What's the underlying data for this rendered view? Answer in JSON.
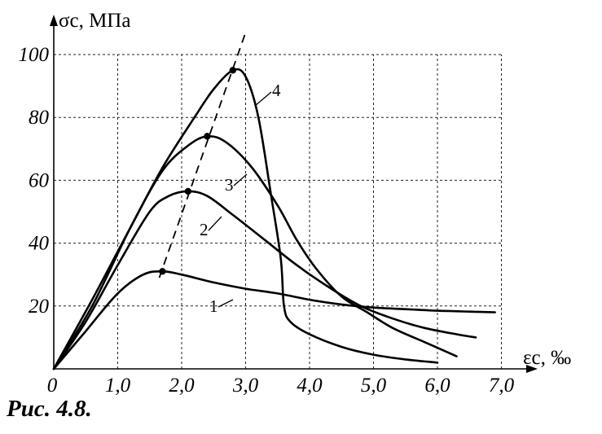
{
  "caption": "Рис. 4.8.",
  "chart_data": {
    "type": "line",
    "title": "",
    "xlabel": "εc, ‰",
    "ylabel": "σc, МПа",
    "xlim": [
      0,
      7.0
    ],
    "ylim": [
      0,
      100
    ],
    "grid": true,
    "x_ticks": [
      "0",
      "1,0",
      "2,0",
      "3,0",
      "4,0",
      "5,0",
      "6,0",
      "7,0"
    ],
    "y_ticks": [
      "20",
      "40",
      "60",
      "80",
      "100"
    ],
    "series": [
      {
        "name": "1",
        "points": [
          [
            0,
            0
          ],
          [
            0.5,
            12
          ],
          [
            1.0,
            24
          ],
          [
            1.4,
            30
          ],
          [
            1.7,
            31
          ],
          [
            2.0,
            30
          ],
          [
            2.5,
            27.5
          ],
          [
            3.0,
            25.5
          ],
          [
            3.5,
            24
          ],
          [
            4.0,
            22
          ],
          [
            4.5,
            20.5
          ],
          [
            5.0,
            19.5
          ],
          [
            5.5,
            19
          ],
          [
            6.0,
            18.5
          ],
          [
            6.5,
            18.2
          ],
          [
            6.9,
            18
          ]
        ],
        "peak": [
          1.7,
          31
        ]
      },
      {
        "name": "2",
        "points": [
          [
            0,
            0
          ],
          [
            0.5,
            15
          ],
          [
            1.0,
            33
          ],
          [
            1.5,
            50
          ],
          [
            1.8,
            55
          ],
          [
            2.1,
            56.5
          ],
          [
            2.4,
            55
          ],
          [
            2.8,
            49
          ],
          [
            3.3,
            41
          ],
          [
            3.8,
            33
          ],
          [
            4.3,
            26
          ],
          [
            4.8,
            20
          ],
          [
            5.3,
            16
          ],
          [
            5.8,
            13
          ],
          [
            6.3,
            11
          ],
          [
            6.6,
            10
          ]
        ],
        "peak": [
          2.1,
          56.5
        ]
      },
      {
        "name": "3",
        "points": [
          [
            0,
            0
          ],
          [
            0.6,
            20
          ],
          [
            1.2,
            45
          ],
          [
            1.7,
            63
          ],
          [
            2.1,
            71
          ],
          [
            2.4,
            74
          ],
          [
            2.7,
            72
          ],
          [
            3.1,
            64
          ],
          [
            3.5,
            52
          ],
          [
            3.8,
            41
          ],
          [
            4.1,
            32
          ],
          [
            4.5,
            23
          ],
          [
            4.9,
            18
          ],
          [
            5.3,
            13
          ],
          [
            5.8,
            8.5
          ],
          [
            6.3,
            4
          ]
        ],
        "peak": [
          2.4,
          74
        ]
      },
      {
        "name": "4",
        "points": [
          [
            0,
            0
          ],
          [
            0.6,
            22
          ],
          [
            1.2,
            45
          ],
          [
            1.7,
            64
          ],
          [
            2.2,
            80
          ],
          [
            2.5,
            89
          ],
          [
            2.8,
            95
          ],
          [
            3.0,
            93
          ],
          [
            3.2,
            80
          ],
          [
            3.4,
            55
          ],
          [
            3.55,
            35
          ],
          [
            3.6,
            20
          ],
          [
            3.7,
            15
          ],
          [
            4.0,
            11
          ],
          [
            4.5,
            7
          ],
          [
            5.0,
            4.5
          ],
          [
            5.5,
            3
          ],
          [
            6.0,
            2
          ]
        ],
        "peak": [
          2.8,
          95
        ]
      }
    ],
    "peak_line": [
      [
        1.65,
        29
      ],
      [
        3.0,
        107
      ]
    ]
  }
}
